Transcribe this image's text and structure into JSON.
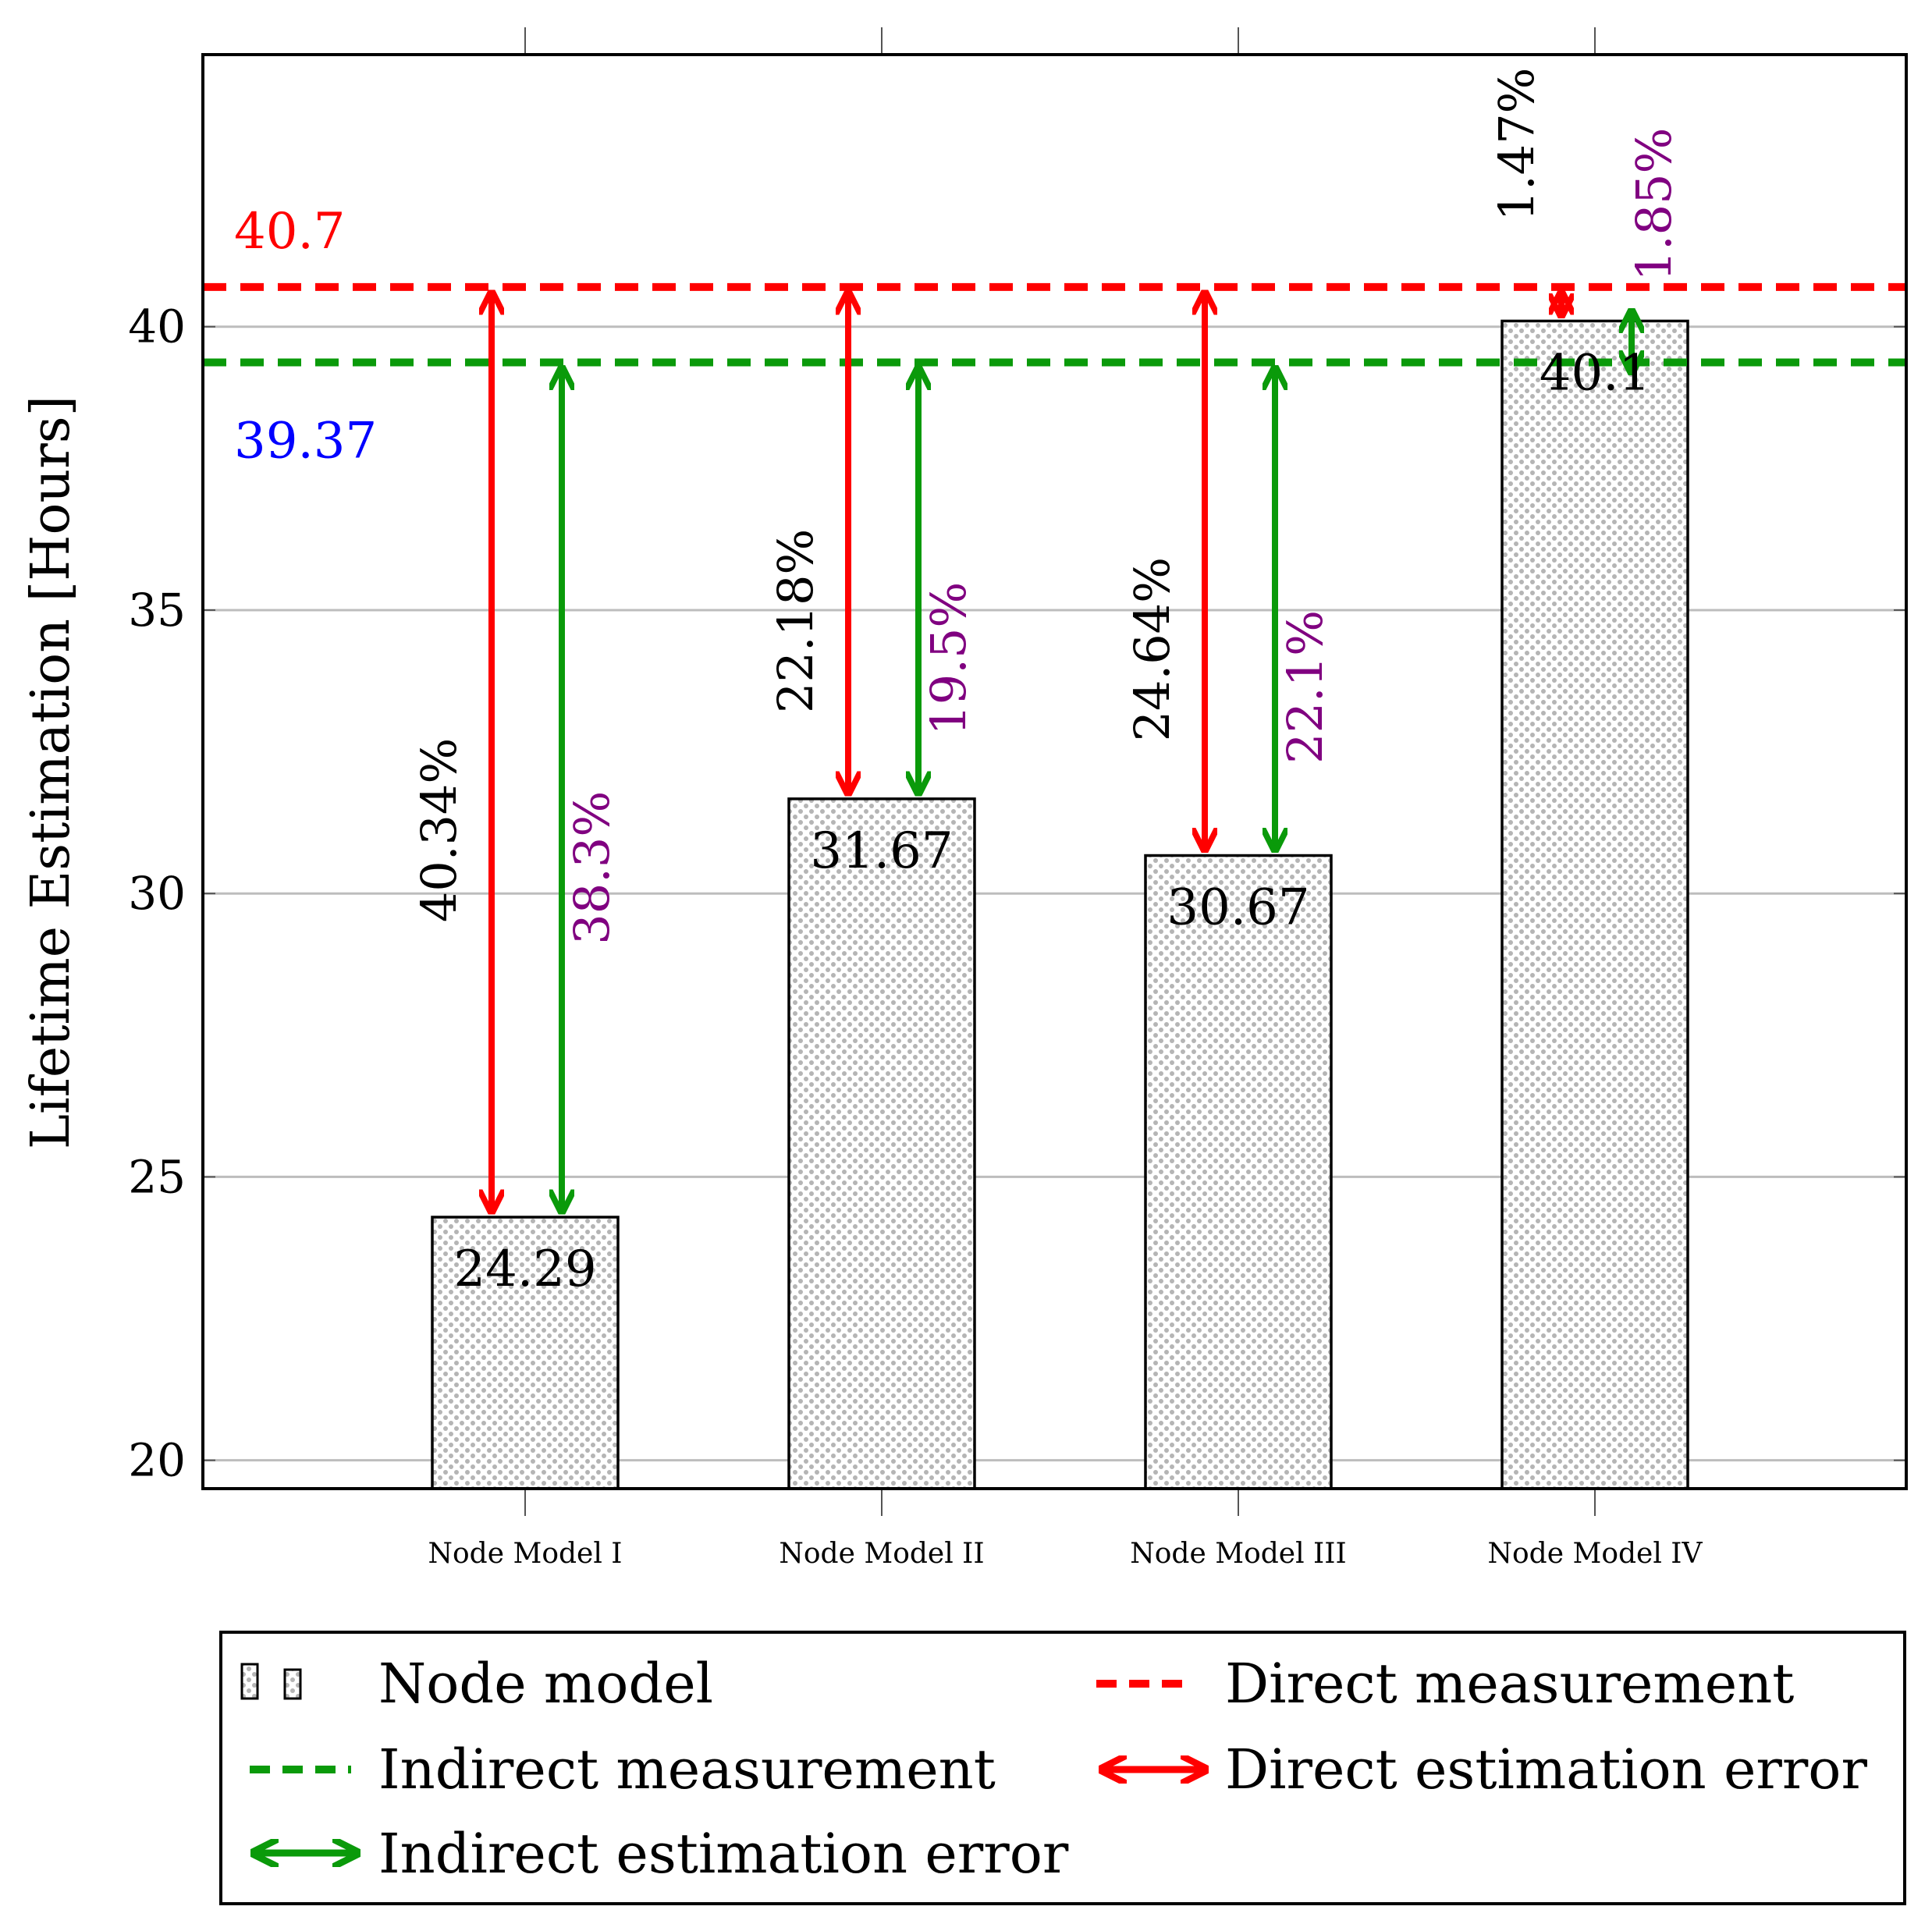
{
  "chart_data": {
    "type": "bar",
    "ylabel": "Lifetime Estimation [Hours]",
    "ylim": [
      19.5,
      44.8
    ],
    "yticks": [
      "20",
      "25",
      "30",
      "35",
      "40"
    ],
    "grid": true,
    "categories": [
      "Node Model I",
      "Node Model II",
      "Node Model III",
      "Node Model IV"
    ],
    "values": [
      24.29,
      31.67,
      30.67,
      40.1
    ],
    "value_labels": [
      "24.29",
      "31.67",
      "30.67",
      "40.1"
    ],
    "direct_measurement": {
      "value": 40.7,
      "label": "40.7",
      "color": "#ff0000"
    },
    "indirect_measurement": {
      "value": 39.37,
      "label": "39.37",
      "color": "#0a9a0a",
      "label_color": "#0000ff"
    },
    "direct_errors": [
      "40.34%",
      "22.18%",
      "24.64%",
      "1.47%"
    ],
    "indirect_errors": [
      "38.3%",
      "19.5%",
      "22.1%",
      "1.85%"
    ],
    "error_label_colors": {
      "direct": "#000000",
      "indirect": "#800080"
    },
    "legend": {
      "placement": "bottom",
      "entries": [
        "Node model",
        "Direct measurement",
        "Indirect measurement",
        "Direct estimation error",
        "Indirect estimation error"
      ]
    }
  }
}
